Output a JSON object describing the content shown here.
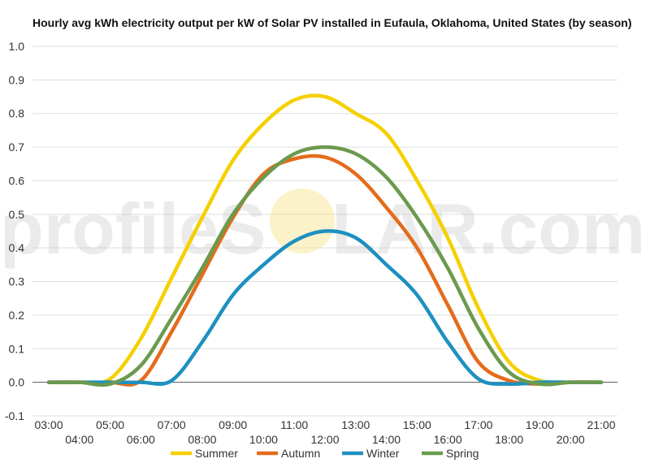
{
  "chart_data": {
    "type": "line",
    "title": "Hourly avg kWh electricity output per kW of Solar PV installed in Eufaula, Oklahoma, United States (by season)",
    "xlabel": "",
    "ylabel": "",
    "ylim": [
      -0.1,
      1.0
    ],
    "yticks": [
      "-0.1",
      "0.0",
      "0.1",
      "0.2",
      "0.3",
      "0.4",
      "0.5",
      "0.6",
      "0.7",
      "0.8",
      "0.9",
      "1.0"
    ],
    "categories": [
      "03:00",
      "04:00",
      "05:00",
      "06:00",
      "07:00",
      "08:00",
      "09:00",
      "10:00",
      "11:00",
      "12:00",
      "13:00",
      "14:00",
      "15:00",
      "16:00",
      "17:00",
      "18:00",
      "19:00",
      "20:00",
      "21:00"
    ],
    "grid": true,
    "legend_position": "bottom",
    "series": [
      {
        "name": "Summer",
        "color": "#F5D000",
        "values": [
          0,
          0,
          0.01,
          0.13,
          0.31,
          0.49,
          0.66,
          0.77,
          0.84,
          0.85,
          0.8,
          0.74,
          0.6,
          0.43,
          0.22,
          0.06,
          0.005,
          0,
          0
        ]
      },
      {
        "name": "Autumn",
        "color": "#E46C1B",
        "values": [
          0,
          0,
          0,
          0.005,
          0.15,
          0.32,
          0.49,
          0.62,
          0.665,
          0.67,
          0.62,
          0.52,
          0.4,
          0.23,
          0.06,
          0.005,
          -0.005,
          0,
          0
        ]
      },
      {
        "name": "Winter",
        "color": "#1E90C0",
        "values": [
          0,
          0,
          0,
          0,
          0.005,
          0.12,
          0.26,
          0.35,
          0.42,
          0.45,
          0.43,
          0.35,
          0.26,
          0.12,
          0.01,
          -0.005,
          0,
          0,
          0
        ]
      },
      {
        "name": "Spring",
        "color": "#6B9A4E",
        "values": [
          0,
          0,
          -0.005,
          0.05,
          0.19,
          0.34,
          0.5,
          0.61,
          0.68,
          0.7,
          0.68,
          0.61,
          0.49,
          0.34,
          0.16,
          0.03,
          -0.005,
          0,
          0
        ]
      }
    ]
  },
  "watermark": {
    "left_text": "profileS",
    "right_text": "LAR.com"
  }
}
